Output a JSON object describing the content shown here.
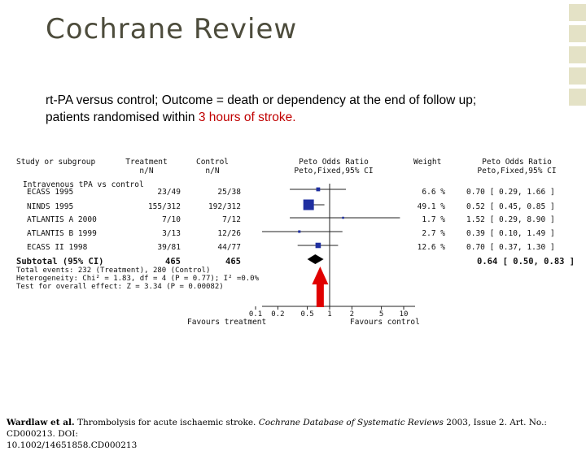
{
  "slide": {
    "title": "Cochrane Review",
    "subtitle_line1": "rt-PA versus control; Outcome = death or dependency at the end of follow up;",
    "subtitle_line2_plain": "patients randomised within ",
    "subtitle_line2_red": "3 hours of stroke."
  },
  "forest": {
    "headers": {
      "study": "Study or subgroup",
      "treatment_1": "Treatment",
      "treatment_2": "n/N",
      "control_1": "Control",
      "control_2": "n/N",
      "or_1": "Peto Odds Ratio",
      "or_2": "Peto,Fixed,95% CI",
      "weight": "Weight",
      "or2_1": "Peto Odds Ratio",
      "or2_2": "Peto,Fixed,95% CI"
    },
    "group_label": "Intravenous tPA vs control",
    "studies": [
      {
        "name": "ECASS 1995",
        "treatment": "23/49",
        "control": "25/38",
        "weight": "6.6 %",
        "ci_text": "0.70 [ 0.29, 1.66 ]",
        "or": 0.7,
        "lo": 0.29,
        "hi": 1.66
      },
      {
        "name": "NINDS 1995",
        "treatment": "155/312",
        "control": "192/312",
        "weight": "49.1 %",
        "ci_text": "0.52 [ 0.45, 0.85 ]",
        "or": 0.52,
        "lo": 0.45,
        "hi": 0.85
      },
      {
        "name": "ATLANTIS A 2000",
        "treatment": "7/10",
        "control": "7/12",
        "weight": "1.7 %",
        "ci_text": "1.52 [ 0.29, 8.90 ]",
        "or": 1.52,
        "lo": 0.29,
        "hi": 8.9
      },
      {
        "name": "ATLANTIS B 1999",
        "treatment": "3/13",
        "control": "12/26",
        "weight": "2.7 %",
        "ci_text": "0.39 [ 0.10, 1.49 ]",
        "or": 0.39,
        "lo": 0.1,
        "hi": 1.49
      },
      {
        "name": "ECASS II 1998",
        "treatment": "39/81",
        "control": "44/77",
        "weight": "12.6 %",
        "ci_text": "0.70 [ 0.37, 1.30 ]",
        "or": 0.7,
        "lo": 0.37,
        "hi": 1.3
      }
    ],
    "subtotal": {
      "label": "Subtotal (95% CI)",
      "treatment_total": "465",
      "control_total": "465",
      "ci_text": "0.64 [ 0.50, 0.83 ]",
      "or": 0.64,
      "lo": 0.5,
      "hi": 0.83
    },
    "stats": [
      "Total events: 232 (Treatment), 280 (Control)",
      "Heterogeneity: Chi² = 1.83, df = 4 (P = 0.77); I² =0.0%",
      "Test for overall effect: Z = 3.34 (P = 0.00082)"
    ],
    "axis_ticks": [
      {
        "value": 0.1,
        "label": "0.1"
      },
      {
        "value": 0.2,
        "label": "0.2"
      },
      {
        "value": 0.5,
        "label": "0.5"
      },
      {
        "value": 1,
        "label": "1"
      },
      {
        "value": 2,
        "label": "2"
      },
      {
        "value": 5,
        "label": "5"
      },
      {
        "value": 10,
        "label": "10"
      }
    ],
    "favours_left": "Favours treatment",
    "favours_right": "Favours control"
  },
  "citation": {
    "authors": "Wardlaw et al.",
    "text1": " Thrombolysis for acute ischaemic stroke. ",
    "journal": "Cochrane Database of Systematic Reviews",
    "text2": " 2003, Issue 2. Art. No.: CD000213. DOI:",
    "line2": "10.1002/14651858.CD000213"
  },
  "colors": {
    "marker": "#1f2fa0",
    "arrow": "#e00000",
    "decor": "#e4e2c6",
    "title": "#4d4c3c",
    "highlight": "#c00000"
  }
}
